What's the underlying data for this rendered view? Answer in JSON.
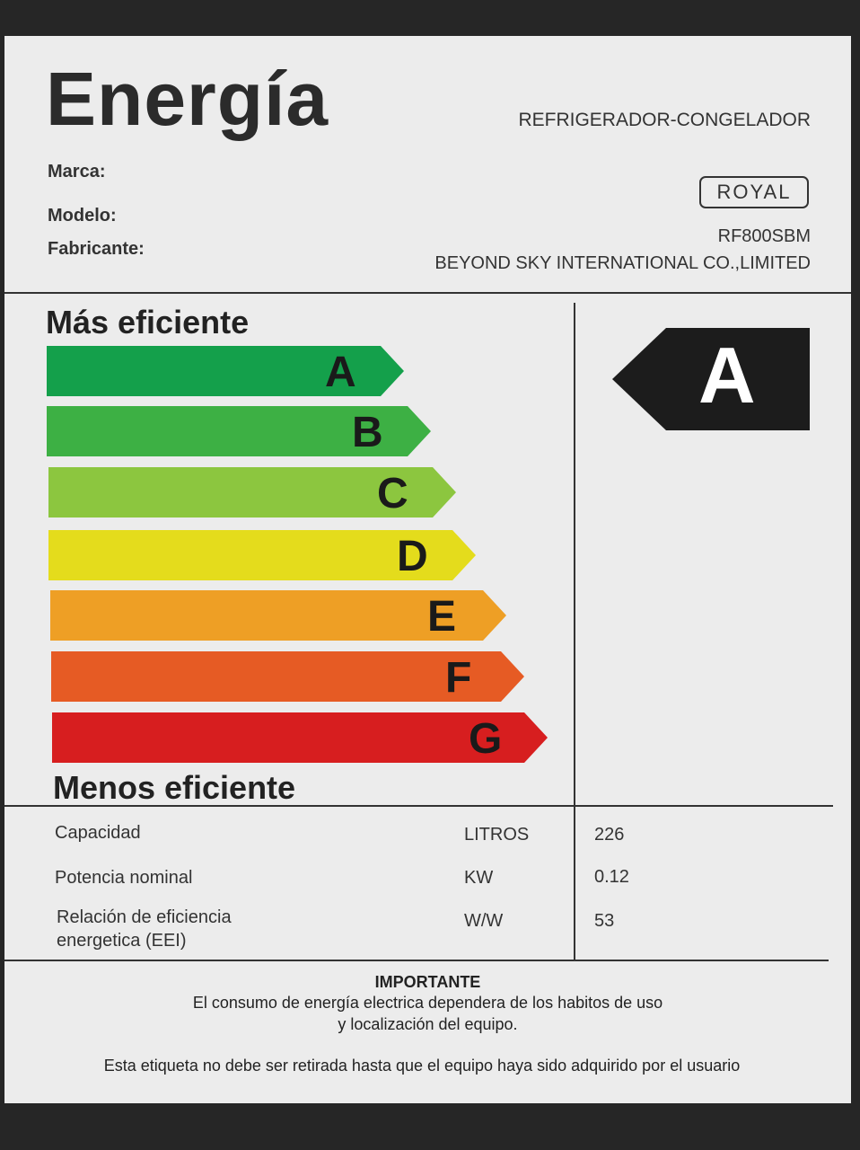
{
  "header": {
    "title": "Energía",
    "category": "REFRIGERADOR-CONGELADOR",
    "fields": {
      "brand_label": "Marca:",
      "model_label": "Modelo:",
      "manufacturer_label": "Fabricante:"
    },
    "brand_logo": "ROYAL",
    "model": "RF800SBM",
    "manufacturer": "BEYOND SKY INTERNATIONAL CO.,LIMITED"
  },
  "scale": {
    "top_label": "Más eficiente",
    "bottom_label": "Menos eficiente",
    "classes": [
      {
        "letter": "A",
        "color": "#14a04b"
      },
      {
        "letter": "B",
        "color": "#3db044"
      },
      {
        "letter": "C",
        "color": "#8cc63f"
      },
      {
        "letter": "D",
        "color": "#e4dc1c"
      },
      {
        "letter": "E",
        "color": "#ee9f25"
      },
      {
        "letter": "F",
        "color": "#e65b24"
      },
      {
        "letter": "G",
        "color": "#d71e1f"
      }
    ],
    "rating": "A"
  },
  "specs": [
    {
      "name": "Capacidad",
      "unit": "LITROS",
      "value": "226"
    },
    {
      "name": "Potencia nominal",
      "unit": "KW",
      "value": "0.12"
    },
    {
      "name": "Relación de eficiencia energetica (EEI)",
      "unit": "W/W",
      "value": "53"
    }
  ],
  "notice": {
    "heading": "IMPORTANTE",
    "line1": "El consumo de energía electrica dependera de los habitos de uso",
    "line2": "y localización del equipo.",
    "footer": "Esta etiqueta no debe ser retirada hasta que el equipo haya sido adquirido por el usuario"
  }
}
